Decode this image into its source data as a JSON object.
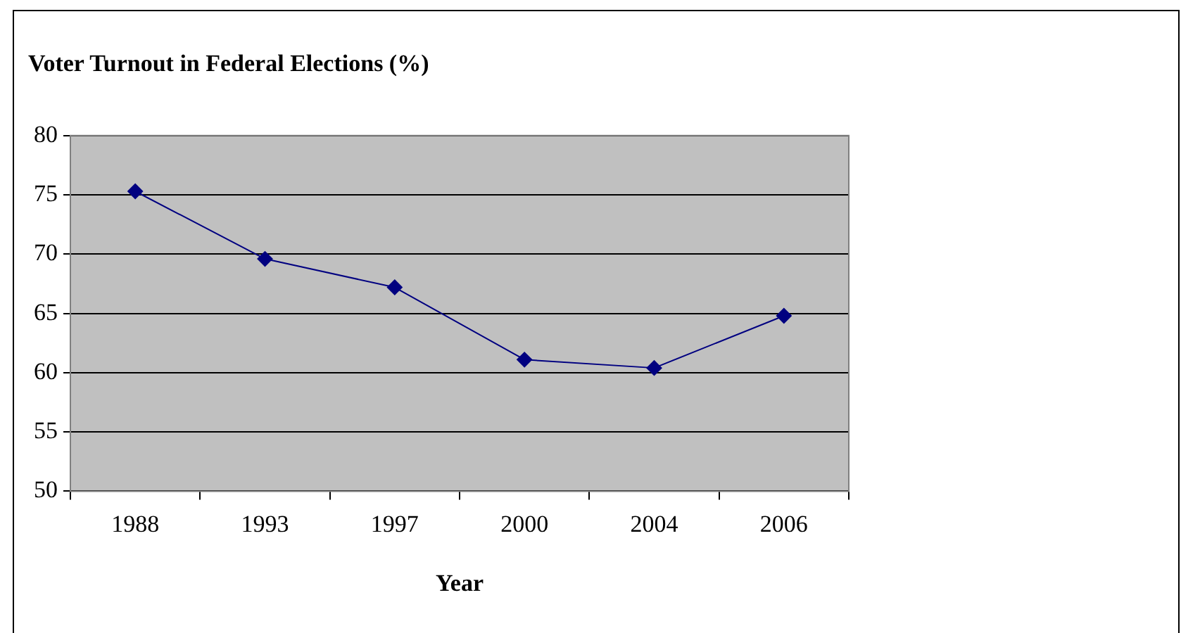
{
  "chart_data": {
    "type": "line",
    "title": "Voter Turnout in Federal Elections (%)",
    "xlabel": "Year",
    "categories": [
      "1988",
      "1993",
      "1997",
      "2000",
      "2004",
      "2006"
    ],
    "series": [
      {
        "color": "#000080",
        "values": [
          75.3,
          69.6,
          67.2,
          61.1,
          60.4,
          64.8
        ]
      }
    ],
    "ylim": [
      50,
      80
    ],
    "yticks": [
      50,
      55,
      60,
      65,
      70,
      75,
      80
    ],
    "grid": "y",
    "legend": false,
    "marker": "diamond",
    "line_style": "solid"
  }
}
